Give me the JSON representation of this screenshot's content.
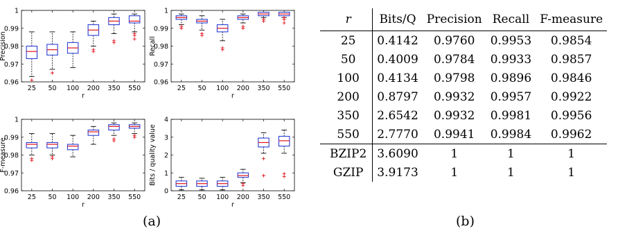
{
  "panel_a_label": "(a)",
  "panel_b_label": "(b)",
  "chart_data": [
    {
      "type": "boxplot",
      "ylabel": "Precision",
      "xlabel": "r",
      "categories": [
        "25",
        "50",
        "100",
        "200",
        "350",
        "550"
      ],
      "ylim": [
        0.96,
        1.0
      ],
      "yticks": [
        "0.96",
        "0.97",
        "0.98",
        "0.99",
        "1"
      ],
      "boxes": [
        {
          "q1": 0.973,
          "median": 0.977,
          "q3": 0.98,
          "whisker_low": 0.963,
          "whisker_high": 0.988,
          "outliers": [
            0.961
          ]
        },
        {
          "q1": 0.975,
          "median": 0.978,
          "q3": 0.981,
          "whisker_low": 0.967,
          "whisker_high": 0.988,
          "outliers": [
            0.965
          ]
        },
        {
          "q1": 0.976,
          "median": 0.979,
          "q3": 0.982,
          "whisker_low": 0.968,
          "whisker_high": 0.988,
          "outliers": []
        },
        {
          "q1": 0.986,
          "median": 0.989,
          "q3": 0.992,
          "whisker_low": 0.98,
          "whisker_high": 0.994,
          "outliers": [
            0.977,
            0.978
          ]
        },
        {
          "q1": 0.992,
          "median": 0.994,
          "q3": 0.996,
          "whisker_low": 0.987,
          "whisker_high": 0.998,
          "outliers": [
            0.982,
            0.983
          ]
        },
        {
          "q1": 0.993,
          "median": 0.994,
          "q3": 0.997,
          "whisker_low": 0.988,
          "whisker_high": 0.998,
          "outliers": [
            0.984,
            0.986,
            0.987
          ]
        }
      ]
    },
    {
      "type": "boxplot",
      "ylabel": "Recall",
      "xlabel": "r",
      "categories": [
        "25",
        "50",
        "100",
        "200",
        "350",
        "550"
      ],
      "ylim": [
        0.96,
        1.0
      ],
      "yticks": [
        "0.96",
        "0.97",
        "0.98",
        "0.99",
        "1"
      ],
      "boxes": [
        {
          "q1": 0.995,
          "median": 0.996,
          "q3": 0.997,
          "whisker_low": 0.992,
          "whisker_high": 0.998,
          "outliers": [
            0.99,
            0.991
          ]
        },
        {
          "q1": 0.993,
          "median": 0.994,
          "q3": 0.995,
          "whisker_low": 0.989,
          "whisker_high": 0.997,
          "outliers": [
            0.986,
            0.987
          ]
        },
        {
          "q1": 0.988,
          "median": 0.99,
          "q3": 0.992,
          "whisker_low": 0.983,
          "whisker_high": 0.995,
          "outliers": [
            0.978,
            0.979
          ]
        },
        {
          "q1": 0.995,
          "median": 0.996,
          "q3": 0.997,
          "whisker_low": 0.993,
          "whisker_high": 0.998,
          "outliers": [
            0.99,
            0.991
          ]
        },
        {
          "q1": 0.997,
          "median": 0.998,
          "q3": 0.999,
          "whisker_low": 0.996,
          "whisker_high": 0.999,
          "outliers": [
            0.994,
            0.995
          ]
        },
        {
          "q1": 0.997,
          "median": 0.998,
          "q3": 0.999,
          "whisker_low": 0.996,
          "whisker_high": 0.999,
          "outliers": [
            0.993,
            0.995,
            0.996
          ]
        }
      ]
    },
    {
      "type": "boxplot",
      "ylabel": "F-measure",
      "xlabel": "r",
      "categories": [
        "25",
        "50",
        "100",
        "200",
        "350",
        "550"
      ],
      "ylim": [
        0.96,
        1.0
      ],
      "yticks": [
        "0.96",
        "0.97",
        "0.98",
        "0.99",
        "1"
      ],
      "boxes": [
        {
          "q1": 0.984,
          "median": 0.986,
          "q3": 0.987,
          "whisker_low": 0.98,
          "whisker_high": 0.992,
          "outliers": [
            0.977,
            0.978
          ]
        },
        {
          "q1": 0.984,
          "median": 0.986,
          "q3": 0.987,
          "whisker_low": 0.98,
          "whisker_high": 0.992,
          "outliers": [
            0.978,
            0.979
          ]
        },
        {
          "q1": 0.983,
          "median": 0.985,
          "q3": 0.986,
          "whisker_low": 0.979,
          "whisker_high": 0.991,
          "outliers": []
        },
        {
          "q1": 0.991,
          "median": 0.993,
          "q3": 0.994,
          "whisker_low": 0.986,
          "whisker_high": 0.996,
          "outliers": []
        },
        {
          "q1": 0.994,
          "median": 0.996,
          "q3": 0.997,
          "whisker_low": 0.991,
          "whisker_high": 0.998,
          "outliers": [
            0.988,
            0.989
          ]
        },
        {
          "q1": 0.995,
          "median": 0.996,
          "q3": 0.997,
          "whisker_low": 0.992,
          "whisker_high": 0.998,
          "outliers": [
            0.99,
            0.991
          ]
        }
      ]
    },
    {
      "type": "boxplot",
      "ylabel": "Bits / quality value",
      "xlabel": "r",
      "categories": [
        "25",
        "50",
        "100",
        "200",
        "350",
        "550"
      ],
      "ylim": [
        0,
        4
      ],
      "yticks": [
        "0",
        "1",
        "2",
        "3",
        "4"
      ],
      "boxes": [
        {
          "q1": 0.25,
          "median": 0.4,
          "q3": 0.55,
          "whisker_low": 0.05,
          "whisker_high": 0.75,
          "outliers": []
        },
        {
          "q1": 0.25,
          "median": 0.4,
          "q3": 0.55,
          "whisker_low": 0.05,
          "whisker_high": 0.7,
          "outliers": []
        },
        {
          "q1": 0.25,
          "median": 0.4,
          "q3": 0.55,
          "whisker_low": 0.05,
          "whisker_high": 0.75,
          "outliers": []
        },
        {
          "q1": 0.75,
          "median": 0.85,
          "q3": 1.0,
          "whisker_low": 0.45,
          "whisker_high": 1.2,
          "outliers": [
            0.3,
            0.4
          ]
        },
        {
          "q1": 2.45,
          "median": 2.7,
          "q3": 2.95,
          "whisker_low": 2.1,
          "whisker_high": 3.25,
          "outliers": [
            0.85,
            1.8
          ]
        },
        {
          "q1": 2.5,
          "median": 2.8,
          "q3": 3.05,
          "whisker_low": 2.1,
          "whisker_high": 3.4,
          "outliers": [
            0.8,
            0.95
          ]
        }
      ]
    },
    {
      "type": "table",
      "columns": [
        "r",
        "Bits/Q",
        "Precision",
        "Recall",
        "F-measure"
      ],
      "rows": [
        [
          "25",
          "0.4142",
          "0.9760",
          "0.9953",
          "0.9854"
        ],
        [
          "50",
          "0.4009",
          "0.9784",
          "0.9933",
          "0.9857"
        ],
        [
          "100",
          "0.4134",
          "0.9798",
          "0.9896",
          "0.9846"
        ],
        [
          "200",
          "0.8797",
          "0.9932",
          "0.9957",
          "0.9922"
        ],
        [
          "350",
          "2.6542",
          "0.9932",
          "0.9981",
          "0.9956"
        ],
        [
          "550",
          "2.7770",
          "0.9941",
          "0.9984",
          "0.9962"
        ]
      ],
      "baseline_rows": [
        [
          "BZIP2",
          "3.6090",
          "1",
          "1",
          "1"
        ],
        [
          "GZIP",
          "3.9173",
          "1",
          "1",
          "1"
        ]
      ]
    }
  ],
  "colors": {
    "box": "#2a3fd4",
    "median": "#e0141c",
    "whisker": "#000000",
    "outlier": "#e0141c"
  }
}
